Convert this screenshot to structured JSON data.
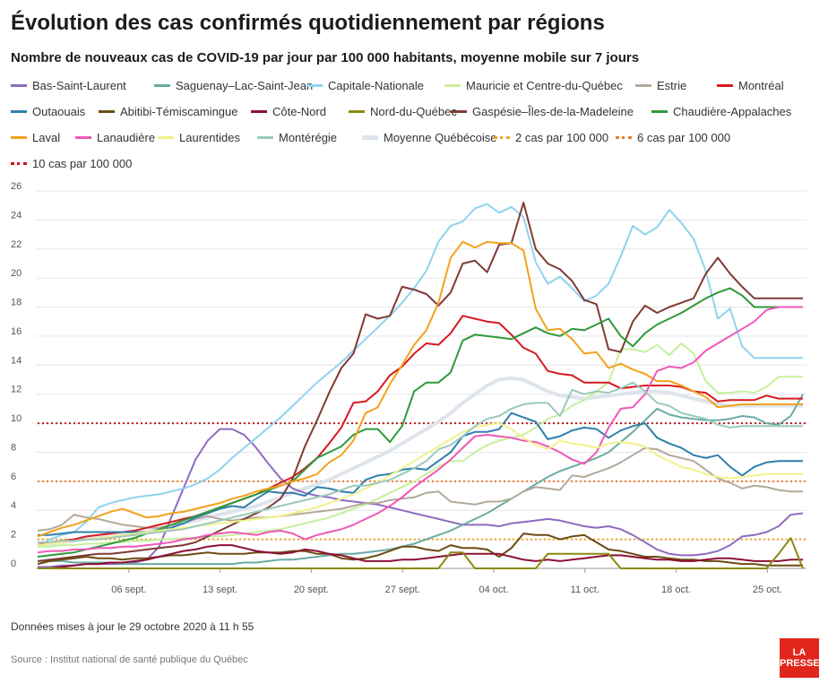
{
  "header": {
    "title": "Évolution des cas confirmés quotidiennement par régions",
    "subtitle": "Nombre de nouveaux cas de COVID-19 par jour par 100 000 habitants, moyenne mobile sur 7 jours"
  },
  "footer": {
    "updated": "Données mises à jour le 29 octobre 2020 à 11 h 55",
    "source": "Source : Institut national de santé publique du Québec",
    "logo_line1": "LA",
    "logo_line2": "PRESSE"
  },
  "chart_data": {
    "type": "line",
    "title": "Évolution des cas confirmés quotidiennement par régions",
    "subtitle": "Nombre de nouveaux cas de COVID-19 par jour par 100 000 habitants, moyenne mobile sur 7 jours",
    "x_ticks": [
      "06 sept.",
      "13 sept.",
      "20 sept.",
      "27 sept.",
      "04 oct.",
      "11 oct.",
      "18 oct.",
      "25 oct."
    ],
    "x_start": "2020-08-30",
    "x_end": "2020-10-28",
    "ylim": [
      0,
      26
    ],
    "y_ticks": [
      0,
      2,
      4,
      6,
      8,
      10,
      12,
      14,
      16,
      18,
      20,
      22,
      24,
      26
    ],
    "grid": true,
    "legend_position": "top",
    "series": [
      {
        "name": "Bas-Saint-Laurent",
        "color": "#8e6bbf",
        "values": [
          0.1,
          0.1,
          0.2,
          0.2,
          0.3,
          0.3,
          0.3,
          0.3,
          0.4,
          0.6,
          1.5,
          3.5,
          5.5,
          7.5,
          8.8,
          9.6,
          9.6,
          9.2,
          8.3,
          7.2,
          6.2,
          5.5,
          5.2,
          5.0,
          4.9,
          4.7,
          4.6,
          4.5,
          4.4,
          4.2,
          4.0,
          3.8,
          3.6,
          3.4,
          3.2,
          3.0,
          3.0,
          3.0,
          2.9,
          3.1,
          3.2,
          3.3,
          3.4,
          3.3,
          3.1,
          2.9,
          2.8,
          2.9,
          2.7,
          2.3,
          1.8,
          1.3,
          1.0,
          0.9,
          0.9,
          1.0,
          1.2,
          1.6,
          2.2,
          2.3,
          2.5,
          2.9,
          3.7,
          3.8
        ]
      },
      {
        "name": "Saguenay–Lac-Saint-Jean",
        "color": "#6aaba3",
        "values": [
          0.5,
          0.5,
          0.5,
          0.4,
          0.4,
          0.4,
          0.4,
          0.3,
          0.3,
          0.3,
          0.3,
          0.3,
          0.3,
          0.3,
          0.3,
          0.3,
          0.3,
          0.4,
          0.4,
          0.5,
          0.6,
          0.6,
          0.7,
          0.8,
          0.9,
          1.0,
          1.0,
          1.1,
          1.2,
          1.3,
          1.5,
          1.7,
          2.0,
          2.3,
          2.6,
          3.0,
          3.4,
          3.8,
          4.3,
          4.8,
          5.3,
          5.8,
          6.3,
          6.7,
          7.0,
          7.3,
          7.6,
          8.0,
          8.7,
          9.4,
          10.2,
          11.0,
          10.6,
          10.4,
          10.3,
          10.2,
          10.2,
          10.3,
          10.5,
          10.4,
          10.0,
          9.9,
          10.5,
          12.0
        ]
      },
      {
        "name": "Capitale-Nationale",
        "color": "#8fd3ef",
        "values": [
          1.5,
          2.0,
          2.3,
          2.5,
          3.2,
          4.2,
          4.5,
          4.7,
          4.9,
          5.0,
          5.1,
          5.3,
          5.5,
          5.8,
          6.2,
          6.8,
          7.6,
          8.3,
          9.0,
          9.7,
          10.4,
          11.2,
          12.0,
          12.8,
          13.5,
          14.2,
          15.0,
          15.8,
          16.6,
          17.4,
          18.3,
          19.3,
          20.5,
          22.5,
          23.6,
          23.9,
          24.8,
          25.1,
          24.5,
          24.9,
          24.2,
          21.1,
          19.6,
          20.1,
          19.3,
          18.4,
          18.8,
          19.6,
          21.5,
          23.6,
          23.0,
          23.5,
          24.7,
          23.8,
          22.7,
          20.5,
          17.2,
          17.9,
          15.3,
          14.5,
          14.5,
          14.5,
          14.5,
          14.5
        ]
      },
      {
        "name": "Mauricie et Centre-du-Québec",
        "color": "#c7f09c",
        "values": [
          1.5,
          1.5,
          1.6,
          1.6,
          1.7,
          1.7,
          1.8,
          1.8,
          1.9,
          1.9,
          2.0,
          2.0,
          2.1,
          2.1,
          2.2,
          2.2,
          2.3,
          2.4,
          2.5,
          2.6,
          2.7,
          2.9,
          3.1,
          3.3,
          3.5,
          3.8,
          4.1,
          4.4,
          4.8,
          5.2,
          5.6,
          6.0,
          6.5,
          7.0,
          7.4,
          7.4,
          8.0,
          8.5,
          8.8,
          9.0,
          9.2,
          9.7,
          10.3,
          10.6,
          11.2,
          11.6,
          12.2,
          12.8,
          15.1,
          15.1,
          14.9,
          15.4,
          14.7,
          15.5,
          14.8,
          12.9,
          12.1,
          12.1,
          12.2,
          12.1,
          12.5,
          13.2,
          13.2,
          13.2
        ]
      },
      {
        "name": "Estrie",
        "color": "#b3a99a",
        "values": [
          2.6,
          2.7,
          3.0,
          3.7,
          3.5,
          3.4,
          3.2,
          3.0,
          2.9,
          2.8,
          2.8,
          3.0,
          3.1,
          3.4,
          3.6,
          3.4,
          3.3,
          3.4,
          3.5,
          3.5,
          3.6,
          3.7,
          3.8,
          3.9,
          4.0,
          4.1,
          4.3,
          4.5,
          4.5,
          4.7,
          4.8,
          4.9,
          5.2,
          5.3,
          4.6,
          4.5,
          4.4,
          4.6,
          4.6,
          4.8,
          5.3,
          5.6,
          5.5,
          5.4,
          6.4,
          6.3,
          6.6,
          6.9,
          7.3,
          7.8,
          8.3,
          8.2,
          7.8,
          7.6,
          7.4,
          6.8,
          6.2,
          5.9,
          5.5,
          5.7,
          5.6,
          5.4,
          5.3,
          5.3
        ]
      },
      {
        "name": "Montréal",
        "color": "#d71920",
        "values": [
          1.6,
          1.8,
          1.9,
          2.0,
          2.2,
          2.3,
          2.4,
          2.5,
          2.6,
          2.8,
          3.0,
          3.2,
          3.4,
          3.6,
          3.9,
          4.2,
          4.5,
          4.8,
          5.1,
          5.5,
          5.9,
          6.3,
          6.9,
          7.6,
          8.6,
          9.7,
          11.4,
          11.5,
          12.2,
          13.3,
          13.9,
          14.8,
          15.5,
          15.4,
          16.2,
          17.4,
          17.2,
          17.0,
          16.9,
          16.1,
          15.2,
          14.8,
          13.6,
          13.4,
          13.3,
          12.8,
          12.8,
          12.8,
          12.4,
          12.5,
          12.6,
          12.6,
          12.6,
          12.5,
          12.2,
          12.1,
          11.5,
          11.6,
          11.6,
          11.6,
          11.9,
          11.7,
          11.7,
          11.7
        ]
      },
      {
        "name": "Outaouais",
        "color": "#2f7fad",
        "values": [
          2.3,
          2.3,
          2.4,
          2.5,
          2.5,
          2.5,
          2.5,
          2.5,
          2.5,
          2.5,
          2.6,
          2.8,
          3.1,
          3.5,
          3.8,
          4.1,
          4.3,
          4.2,
          4.8,
          5.3,
          5.2,
          5.2,
          5.0,
          5.6,
          5.5,
          5.3,
          5.2,
          6.1,
          6.4,
          6.5,
          6.8,
          6.9,
          6.8,
          7.4,
          8.0,
          9.1,
          9.4,
          9.4,
          9.6,
          10.7,
          10.4,
          10.1,
          8.9,
          9.1,
          9.5,
          9.7,
          9.6,
          9.0,
          9.5,
          9.8,
          10.0,
          9.0,
          8.6,
          8.3,
          7.8,
          7.6,
          7.8,
          7.0,
          6.4,
          7.0,
          7.3,
          7.4,
          7.4,
          7.4
        ]
      },
      {
        "name": "Abitibi-Témiscamingue",
        "color": "#6b4c11",
        "values": [
          0.3,
          0.5,
          0.6,
          0.7,
          0.8,
          0.7,
          0.7,
          0.6,
          0.7,
          0.7,
          0.8,
          0.9,
          0.9,
          1.0,
          1.1,
          1.0,
          1.0,
          1.0,
          1.1,
          1.1,
          1.1,
          1.2,
          1.2,
          1.0,
          1.0,
          0.7,
          0.6,
          0.7,
          0.9,
          1.2,
          1.5,
          1.5,
          1.3,
          1.2,
          1.6,
          1.4,
          1.4,
          1.3,
          0.8,
          1.4,
          2.4,
          2.3,
          2.3,
          2.0,
          2.2,
          2.3,
          1.8,
          1.3,
          1.2,
          1.0,
          0.8,
          0.8,
          0.7,
          0.6,
          0.6,
          0.5,
          0.5,
          0.4,
          0.3,
          0.3,
          0.2,
          0.2,
          0.2,
          0.2
        ]
      },
      {
        "name": "Côte-Nord",
        "color": "#8c1034",
        "values": [
          0.0,
          0.0,
          0.1,
          0.2,
          0.3,
          0.3,
          0.4,
          0.4,
          0.5,
          0.6,
          0.8,
          1.0,
          1.2,
          1.3,
          1.5,
          1.6,
          1.6,
          1.4,
          1.2,
          1.1,
          1.0,
          1.1,
          1.3,
          1.2,
          1.0,
          0.9,
          0.7,
          0.5,
          0.5,
          0.5,
          0.6,
          0.6,
          0.7,
          0.8,
          0.9,
          1.0,
          1.0,
          1.0,
          1.0,
          0.8,
          0.6,
          0.5,
          0.6,
          0.5,
          0.6,
          0.7,
          0.8,
          0.9,
          0.9,
          0.8,
          0.7,
          0.6,
          0.6,
          0.5,
          0.5,
          0.6,
          0.7,
          0.7,
          0.6,
          0.5,
          0.5,
          0.5,
          0.6,
          0.6
        ]
      },
      {
        "name": "Nord-du-Québec",
        "color": "#8a8a12",
        "values": [
          0.0,
          0.0,
          0.0,
          0.0,
          0.0,
          0.0,
          0.0,
          0.0,
          0.0,
          0.0,
          0.0,
          0.0,
          0.0,
          0.0,
          0.0,
          0.0,
          0.0,
          0.0,
          0.0,
          0.0,
          0.0,
          0.0,
          0.0,
          0.0,
          0.0,
          0.0,
          0.0,
          0.0,
          0.0,
          0.0,
          0.0,
          0.0,
          0.0,
          0.0,
          1.1,
          1.1,
          0.0,
          0.0,
          0.0,
          0.0,
          0.0,
          0.0,
          1.0,
          1.0,
          1.0,
          1.0,
          1.0,
          1.0,
          0.0,
          0.0,
          0.0,
          0.0,
          0.0,
          0.0,
          0.0,
          0.0,
          0.0,
          0.0,
          0.0,
          0.0,
          0.0,
          1.0,
          2.1,
          0.0
        ]
      },
      {
        "name": "Gaspésie–Îles-de-la-Madeleine",
        "color": "#7e3b33",
        "values": [
          0.5,
          0.6,
          0.7,
          0.8,
          0.9,
          1.0,
          1.0,
          1.1,
          1.2,
          1.3,
          1.4,
          1.5,
          1.6,
          1.8,
          2.2,
          2.6,
          3.0,
          3.4,
          3.8,
          4.2,
          4.8,
          6.2,
          8.4,
          10.2,
          12.1,
          13.8,
          14.8,
          17.5,
          17.2,
          17.4,
          19.4,
          19.2,
          18.9,
          18.1,
          19.0,
          21.0,
          21.2,
          20.4,
          22.3,
          22.4,
          25.2,
          22.0,
          21.0,
          20.6,
          19.8,
          18.5,
          18.2,
          15.1,
          14.9,
          17.0,
          18.1,
          17.6,
          18.0,
          18.3,
          18.6,
          20.3,
          21.4,
          20.3,
          19.4,
          18.6,
          18.6,
          18.6,
          18.6,
          18.6
        ]
      },
      {
        "name": "Chaudière-Appalaches",
        "color": "#2e9a3a",
        "values": [
          0.8,
          0.9,
          1.0,
          1.1,
          1.3,
          1.5,
          1.7,
          1.9,
          2.1,
          2.4,
          2.7,
          3.0,
          3.3,
          3.6,
          3.9,
          4.2,
          4.5,
          4.8,
          5.1,
          5.4,
          5.7,
          6.0,
          6.8,
          7.6,
          8.0,
          8.4,
          9.2,
          9.6,
          9.6,
          8.7,
          9.8,
          12.2,
          12.8,
          12.8,
          13.5,
          15.7,
          16.1,
          16.0,
          15.9,
          15.8,
          16.2,
          16.6,
          16.2,
          16.0,
          16.5,
          16.4,
          16.8,
          17.2,
          16.0,
          15.3,
          16.2,
          16.8,
          17.2,
          17.6,
          18.1,
          18.6,
          19.0,
          19.3,
          18.8,
          18.0,
          18.0,
          18.0,
          18.0,
          18.0
        ]
      },
      {
        "name": "Laval",
        "color": "#f3a21c",
        "values": [
          2.2,
          2.5,
          2.8,
          3.0,
          3.3,
          3.6,
          3.9,
          4.1,
          3.8,
          3.5,
          3.6,
          3.8,
          3.9,
          4.1,
          4.3,
          4.5,
          4.8,
          5.0,
          5.3,
          5.5,
          5.7,
          6.0,
          6.2,
          6.5,
          7.3,
          7.8,
          8.8,
          10.7,
          11.1,
          12.7,
          14.0,
          15.4,
          16.4,
          18.3,
          21.4,
          22.5,
          22.1,
          22.5,
          22.4,
          22.4,
          21.9,
          17.9,
          16.4,
          16.5,
          15.8,
          14.8,
          14.9,
          13.8,
          14.1,
          13.7,
          13.4,
          12.9,
          12.9,
          12.6,
          12.2,
          11.8,
          11.1,
          11.2,
          11.3,
          11.3,
          11.3,
          11.3,
          11.3,
          11.3
        ]
      },
      {
        "name": "Lanaudière",
        "color": "#f058b5",
        "values": [
          1.1,
          1.2,
          1.2,
          1.3,
          1.3,
          1.4,
          1.4,
          1.5,
          1.5,
          1.6,
          1.7,
          1.8,
          2.0,
          2.1,
          2.3,
          2.4,
          2.5,
          2.4,
          2.3,
          2.5,
          2.6,
          2.4,
          2.0,
          2.3,
          2.5,
          2.7,
          3.0,
          3.4,
          3.8,
          4.3,
          4.9,
          5.6,
          6.2,
          6.8,
          7.5,
          8.3,
          9.1,
          9.2,
          9.1,
          9.0,
          8.8,
          8.7,
          8.4,
          8.0,
          7.5,
          7.2,
          8.0,
          9.7,
          11.0,
          11.1,
          12.0,
          13.6,
          13.9,
          13.8,
          14.2,
          15.0,
          15.5,
          16.0,
          16.5,
          17.0,
          17.8,
          18.0,
          18.0,
          18.0
        ]
      },
      {
        "name": "Laurentides",
        "color": "#f1f28b",
        "values": [
          1.6,
          1.7,
          1.8,
          1.9,
          2.0,
          2.1,
          2.2,
          2.3,
          2.4,
          2.5,
          2.6,
          2.7,
          2.8,
          2.9,
          3.0,
          3.1,
          3.2,
          3.3,
          3.4,
          3.5,
          3.6,
          3.8,
          4.0,
          4.2,
          4.5,
          4.8,
          5.1,
          5.5,
          5.9,
          6.4,
          6.9,
          7.4,
          7.9,
          8.4,
          8.9,
          9.4,
          9.7,
          9.9,
          10.0,
          9.6,
          9.0,
          8.5,
          8.2,
          8.8,
          8.6,
          8.5,
          8.3,
          8.6,
          8.7,
          8.6,
          8.4,
          7.8,
          7.4,
          7.0,
          6.8,
          6.5,
          6.3,
          6.2,
          6.3,
          6.4,
          6.5,
          6.5,
          6.5,
          6.5
        ]
      },
      {
        "name": "Montérégie",
        "color": "#9cc9bd",
        "values": [
          1.8,
          1.8,
          1.9,
          1.9,
          2.0,
          2.0,
          2.1,
          2.2,
          2.3,
          2.4,
          2.5,
          2.6,
          2.7,
          2.9,
          3.1,
          3.3,
          3.5,
          3.7,
          3.9,
          4.1,
          4.3,
          4.5,
          4.7,
          4.9,
          5.1,
          5.4,
          5.7,
          5.7,
          5.9,
          6.1,
          6.5,
          6.9,
          7.4,
          8.2,
          8.5,
          9.1,
          9.8,
          10.3,
          10.5,
          11.0,
          11.3,
          11.4,
          11.4,
          10.5,
          12.3,
          12.0,
          12.2,
          12.1,
          12.4,
          12.8,
          12.2,
          11.4,
          11.2,
          10.7,
          10.5,
          10.3,
          9.9,
          9.7,
          9.8,
          9.8,
          9.8,
          9.8,
          9.8,
          9.8
        ]
      },
      {
        "name": "Moyenne Québécoise",
        "color": "#dde4ec",
        "dashed": false,
        "wide": true,
        "values": [
          1.6,
          1.7,
          1.8,
          1.9,
          2.0,
          2.1,
          2.2,
          2.3,
          2.4,
          2.5,
          2.7,
          2.9,
          3.1,
          3.3,
          3.5,
          3.7,
          3.9,
          4.1,
          4.3,
          4.6,
          4.9,
          5.2,
          5.5,
          5.8,
          6.1,
          6.5,
          6.9,
          7.3,
          7.7,
          8.1,
          8.6,
          9.1,
          9.6,
          10.1,
          10.7,
          11.4,
          12.0,
          12.6,
          13.0,
          13.1,
          13.0,
          12.6,
          12.2,
          11.9,
          11.8,
          11.7,
          11.8,
          11.9,
          12.0,
          12.1,
          12.2,
          12.2,
          12.1,
          11.9,
          11.7,
          11.5,
          11.3,
          11.2,
          11.2,
          11.2,
          11.2,
          11.2,
          11.2,
          11.2
        ]
      }
    ],
    "reference_lines": [
      {
        "name": "2 cas par 100 000",
        "value": 2,
        "color": "#f3a21c"
      },
      {
        "name": "6 cas par 100 000",
        "value": 6,
        "color": "#ee7b2a"
      },
      {
        "name": "10 cas par 100 000",
        "value": 10,
        "color": "#c4141b"
      }
    ]
  }
}
